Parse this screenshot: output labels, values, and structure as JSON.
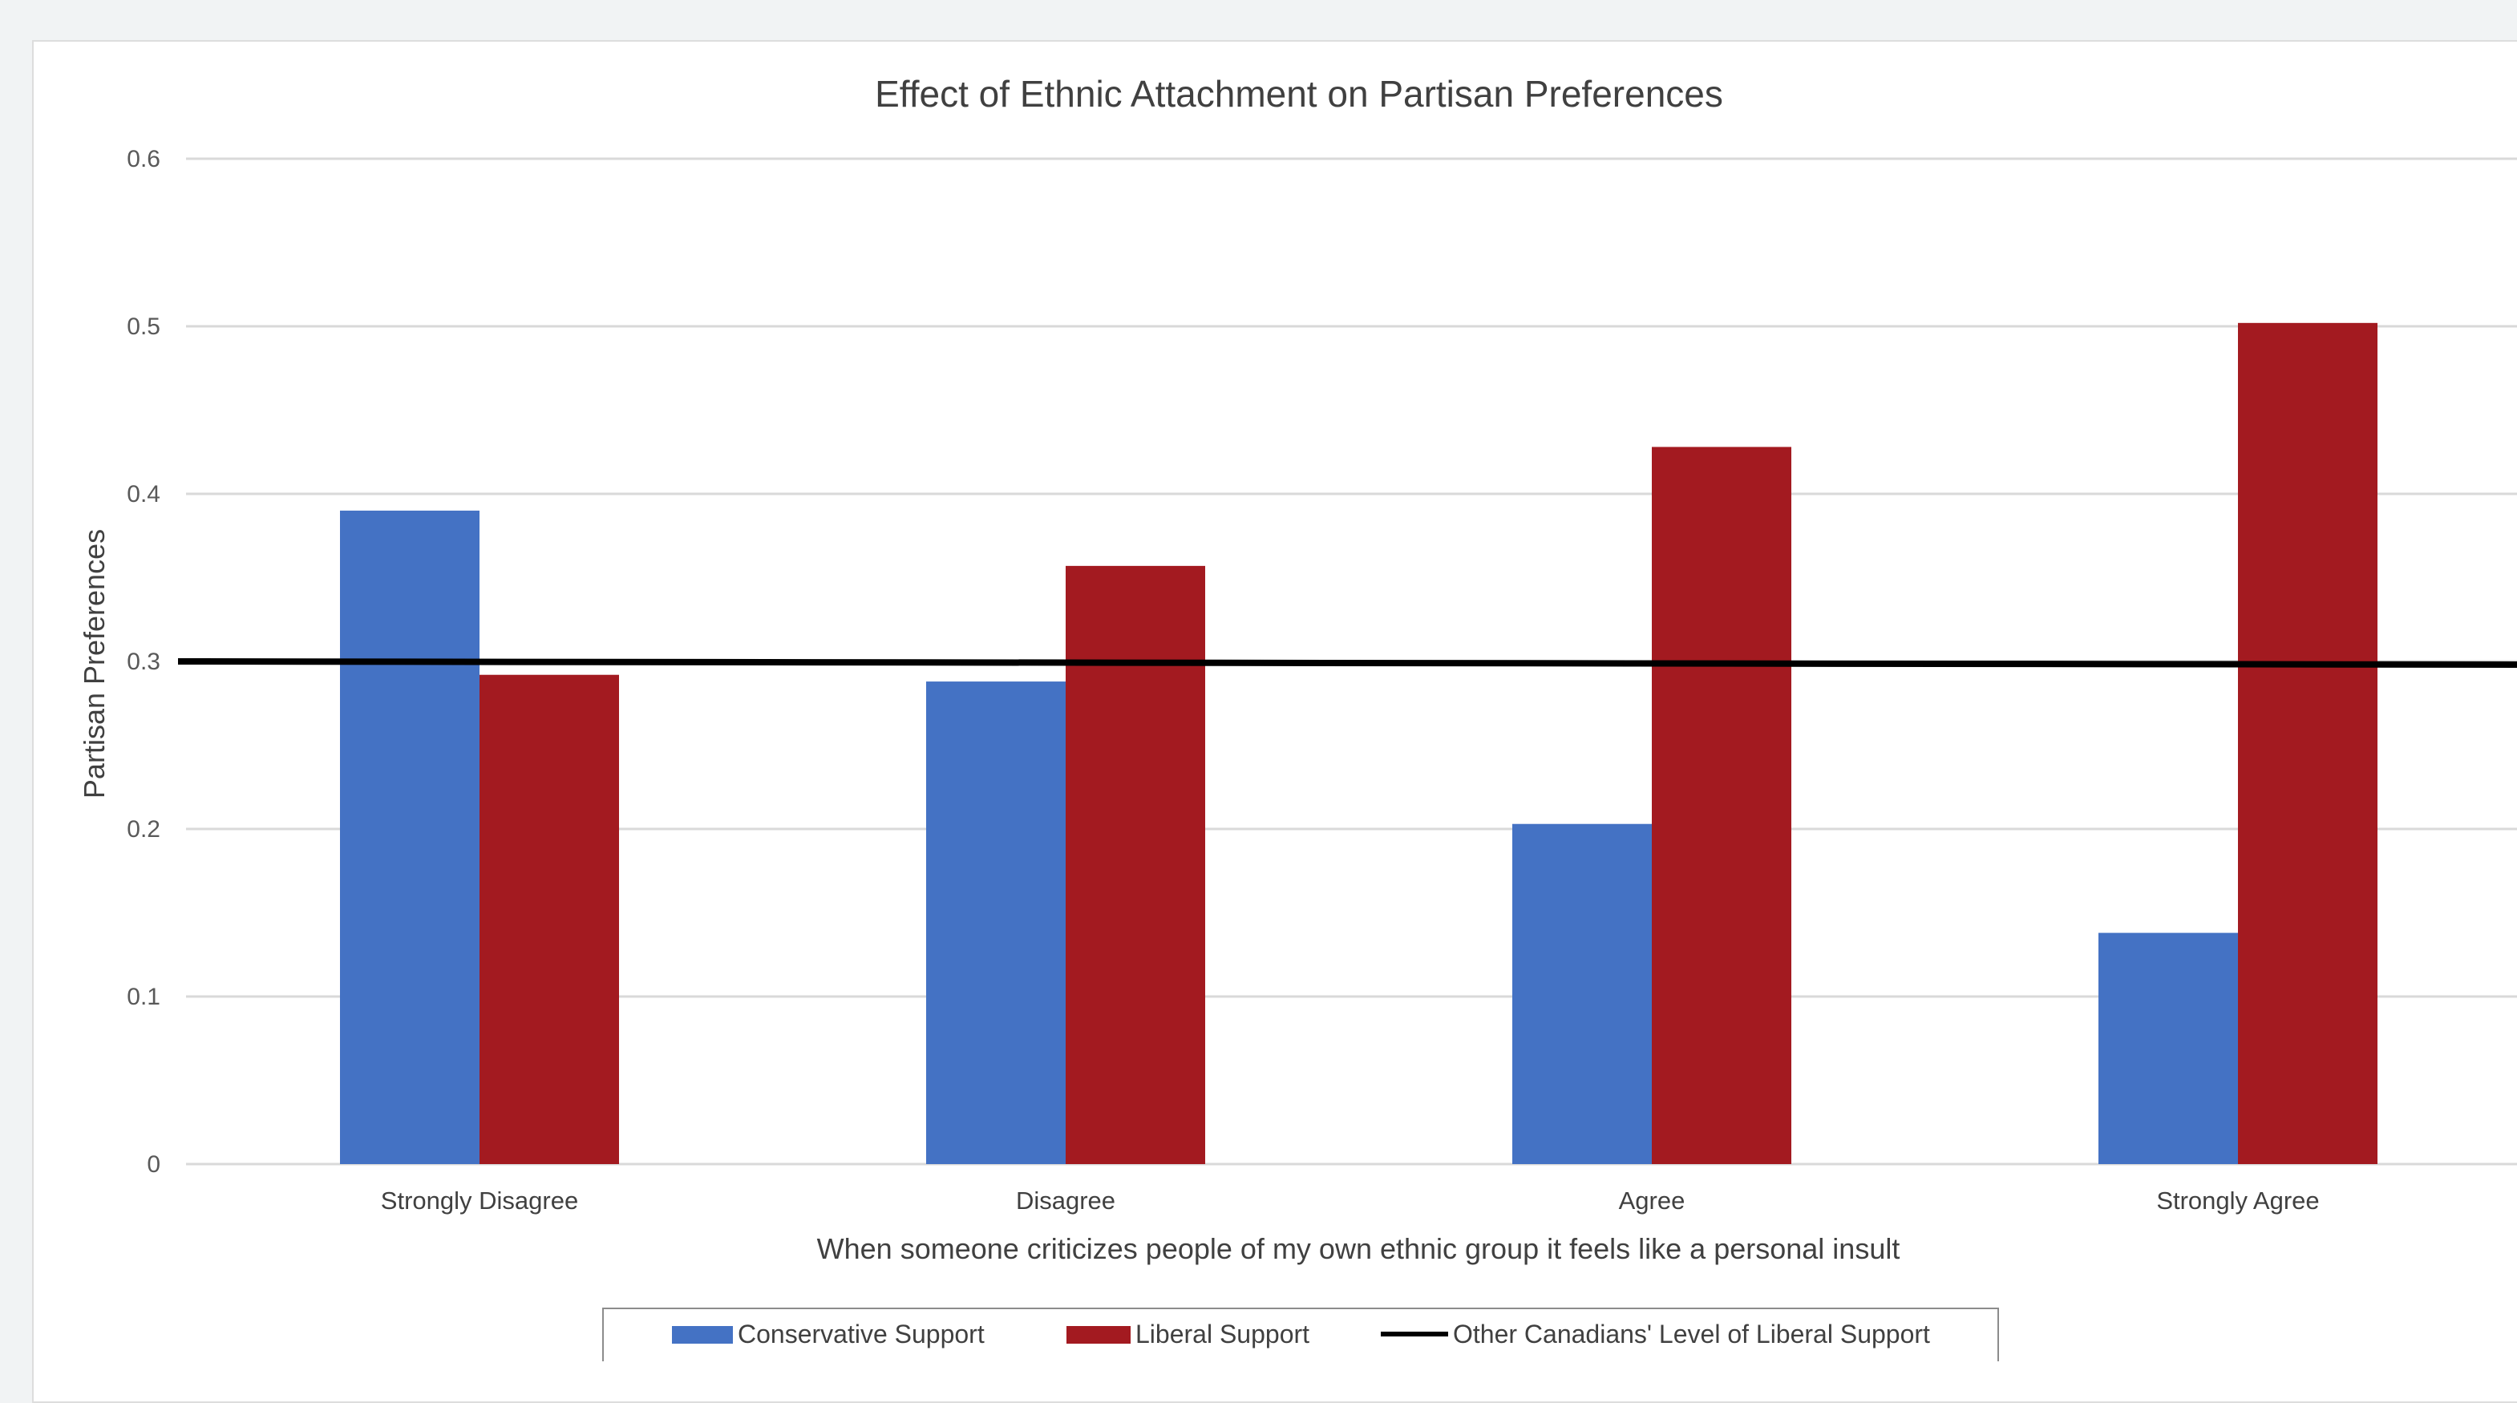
{
  "chart_data": {
    "type": "bar",
    "title": "Effect of Ethnic Attachment on Partisan Preferences",
    "xlabel": "When someone criticizes people of my own ethnic group it feels like a personal insult",
    "ylabel": "Partisan Preferences",
    "ylim": [
      0,
      0.6
    ],
    "yticks": [
      "0",
      "0.1",
      "0.2",
      "0.3",
      "0.4",
      "0.5",
      "0.6"
    ],
    "categories": [
      "Strongly Disagree",
      "Disagree",
      "Agree",
      "Strongly Agree"
    ],
    "series": [
      {
        "name": "Conservative  Support",
        "values": [
          0.39,
          0.288,
          0.203,
          0.138
        ],
        "color": "#4472c4"
      },
      {
        "name": "Liberal Support",
        "values": [
          0.292,
          0.357,
          0.428,
          0.502
        ],
        "color": "#a31a20"
      }
    ],
    "reference_line": {
      "name": "Other Canadians' Level of Liberal Support",
      "value": 0.3,
      "color": "#000000"
    },
    "grid": true,
    "legend_position": "bottom"
  }
}
